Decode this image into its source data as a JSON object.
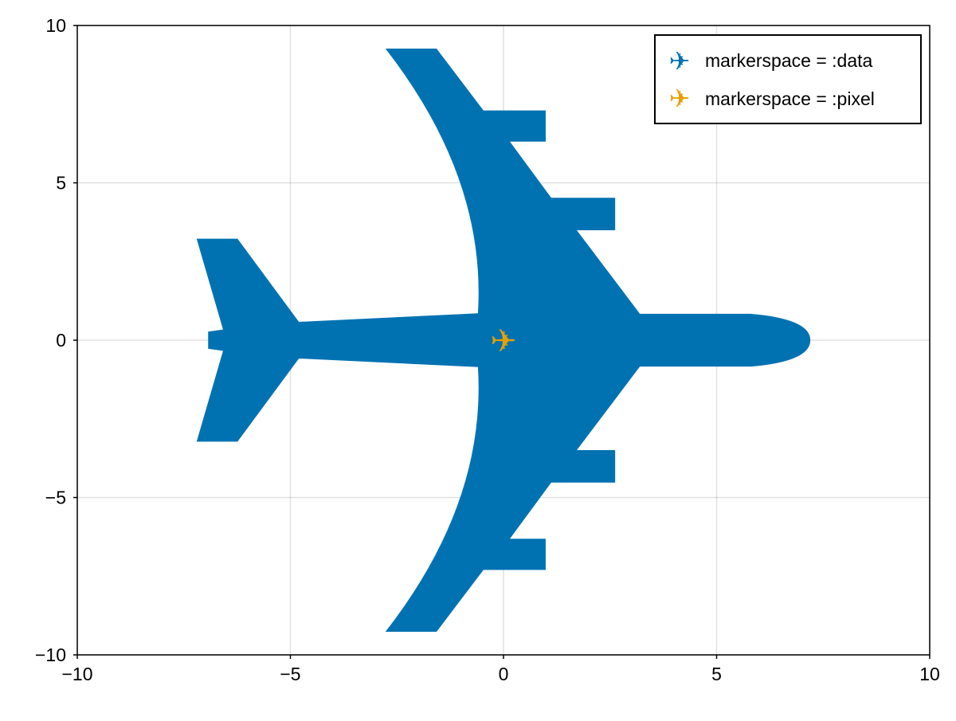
{
  "chart_data": {
    "type": "scatter",
    "xlim": [
      -10,
      10
    ],
    "ylim": [
      -10,
      10
    ],
    "x_ticks": [
      -10,
      -5,
      0,
      5,
      10
    ],
    "y_ticks": [
      -10,
      -5,
      0,
      5,
      10
    ],
    "x_tick_labels": [
      "−10",
      "−5",
      "0",
      "5",
      "10"
    ],
    "y_tick_labels": [
      "−10",
      "−5",
      "0",
      "5",
      "10"
    ],
    "grid": true,
    "legend_position": "top-right",
    "marker": "airplane",
    "series": [
      {
        "name": "markerspace = :data",
        "color": "#0072b2",
        "points": [
          [
            0,
            0
          ]
        ],
        "markersize_data_units": 14.4
      },
      {
        "name": "markerspace = :pixel",
        "color": "#e69f00",
        "points": [
          [
            0,
            0
          ]
        ]
      }
    ]
  }
}
